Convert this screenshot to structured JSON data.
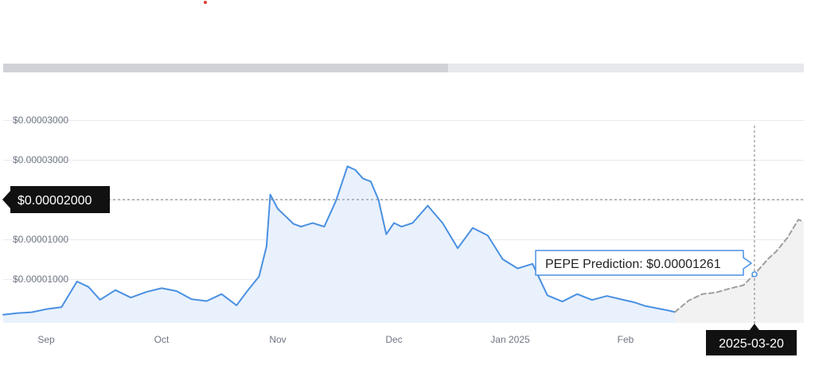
{
  "chart_data": {
    "type": "area",
    "y_ticks": [
      "$0.00003000",
      "$0.00003000",
      "$0.00002000",
      "$0.00001000",
      "$0.00001000"
    ],
    "x_ticks": [
      "Sep",
      "Oct",
      "Nov",
      "Dec",
      "Jan 2025",
      "Feb"
    ],
    "crosshair_price_label": "$0.00002000",
    "crosshair_date_label": "2025-03-20",
    "tooltip": "PEPE Prediction: $0.00001261",
    "grid": "horizontal",
    "series": [
      {
        "kind": "historical",
        "color": "#4a90e2",
        "fill": "#e9f1fc",
        "x": [
          "2024-08-20",
          "2024-08-24",
          "2024-08-28",
          "2024-09-01",
          "2024-09-05",
          "2024-09-09",
          "2024-09-12",
          "2024-09-15",
          "2024-09-19",
          "2024-09-23",
          "2024-09-27",
          "2024-10-01",
          "2024-10-05",
          "2024-10-09",
          "2024-10-13",
          "2024-10-17",
          "2024-10-21",
          "2024-10-24",
          "2024-10-27",
          "2024-10-29",
          "2024-10-30",
          "2024-11-01",
          "2024-11-03",
          "2024-11-05",
          "2024-11-07",
          "2024-11-10",
          "2024-11-13",
          "2024-11-16",
          "2024-11-19",
          "2024-11-21",
          "2024-11-23",
          "2024-11-25",
          "2024-11-27",
          "2024-11-29",
          "2024-12-01",
          "2024-12-03",
          "2024-12-06",
          "2024-12-10",
          "2024-12-14",
          "2024-12-18",
          "2024-12-22",
          "2024-12-26",
          "2024-12-30",
          "2025-01-03",
          "2025-01-07",
          "2025-01-11",
          "2025-01-15",
          "2025-01-19",
          "2025-01-23",
          "2025-01-27",
          "2025-01-31",
          "2025-02-04",
          "2025-02-08",
          "2025-02-12",
          "2025-02-16",
          "2025-02-19"
        ],
        "y": [
          7.52e-06,
          7.72e-06,
          7.84e-06,
          8.22e-06,
          8.48e-06,
          1.17e-05,
          1.102e-05,
          9.4e-06,
          1.062e-05,
          9.68e-06,
          1.038e-05,
          1.086e-05,
          1.05e-05,
          9.48e-06,
          9.24e-06,
          1.012e-05,
          8.7e-06,
          1.058e-05,
          1.234e-05,
          1.612e-05,
          2.264e-05,
          2.084e-05,
          1.992e-05,
          1.896e-05,
          1.86e-05,
          1.906e-05,
          1.86e-05,
          2.182e-05,
          2.618e-05,
          2.574e-05,
          2.464e-05,
          2.428e-05,
          2.2e-05,
          1.764e-05,
          1.906e-05,
          1.86e-05,
          1.906e-05,
          2.124e-05,
          1.904e-05,
          1.588e-05,
          1.844e-05,
          1.75e-05,
          1.45e-05,
          1.334e-05,
          1.392e-05,
          9.96e-06,
          9.18e-06,
          1.012e-05,
          9.38e-06,
          9.88e-06,
          9.44e-06,
          9.1e-06,
          8.64e-06,
          8.36e-06,
          8.1e-06,
          7.86e-06
        ]
      },
      {
        "kind": "prediction",
        "color": "#9e9e9e",
        "fill": "#f2f2f2",
        "x": [
          "2025-02-19",
          "2025-02-24",
          "2025-03-01",
          "2025-03-06",
          "2025-03-11",
          "2025-03-16",
          "2025-03-20",
          "2025-03-25",
          "2025-03-28",
          "2025-04-01",
          "2025-04-05",
          "2025-04-07"
        ],
        "y": [
          7.86e-06,
          9.3e-06,
          1.012e-05,
          1.032e-05,
          1.082e-05,
          1.124e-05,
          1.261e-05,
          1.456e-05,
          1.55e-05,
          1.72e-05,
          1.948e-05,
          1.92e-05
        ]
      }
    ]
  }
}
